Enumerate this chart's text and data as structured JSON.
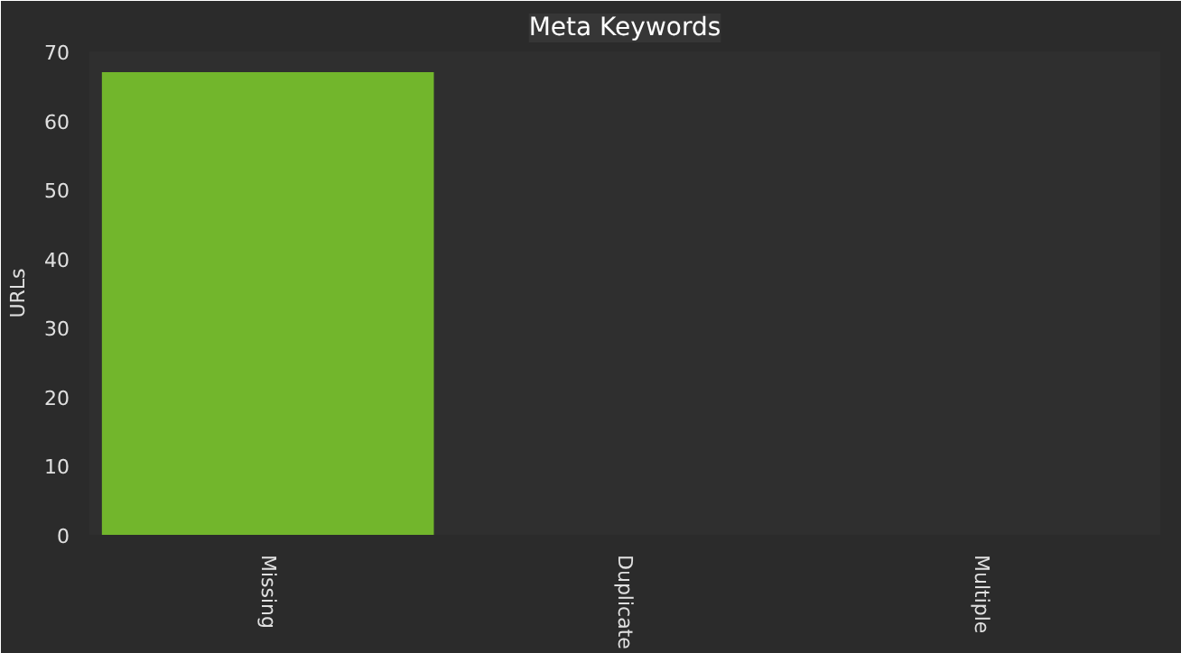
{
  "chart_data": {
    "type": "bar",
    "title": "Meta Keywords",
    "ylabel": "URLs",
    "categories": [
      "Missing",
      "Duplicate",
      "Multiple"
    ],
    "values": [
      67,
      0,
      0
    ],
    "color": "#72b62c",
    "ylim": [
      0,
      70
    ],
    "yticks": [
      0,
      10,
      20,
      30,
      40,
      50,
      60,
      70
    ],
    "grid": false
  }
}
